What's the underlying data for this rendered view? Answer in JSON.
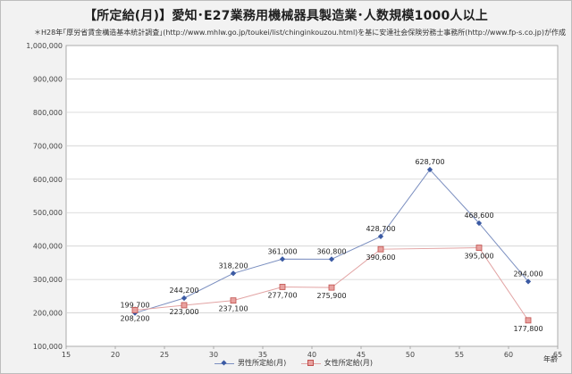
{
  "title": "【所定給(月)】愛知･E27業務用機械器具製造業･人数規模1000人以上",
  "subtitle": "＊H28年｢厚労省賃金構造基本統計調査｣(http://www.mhlw.go.jp/toukei/list/chinginkouzou.html)を基に安達社会保険労務士事務所(http://www.fp-s.co.jp)が作成",
  "colors": {
    "male_line": "#7b8fc0",
    "male_marker": "#3b5aa3",
    "female_line": "#e2a3a3",
    "female_marker": "#c0504d",
    "grid": "#d0d0d0",
    "plot_bg": "#ffffff"
  },
  "chart_data": {
    "type": "line",
    "xlabel": "年齢",
    "ylabel": "",
    "xlim": [
      15,
      65
    ],
    "ylim": [
      100000,
      1000000
    ],
    "x_ticks": [
      "15",
      "20",
      "25",
      "30",
      "35",
      "40",
      "45",
      "50",
      "55",
      "60",
      "65"
    ],
    "y_ticks": [
      "100,000",
      "200,000",
      "300,000",
      "400,000",
      "500,000",
      "600,000",
      "700,000",
      "800,000",
      "900,000",
      "1,000,000"
    ],
    "grid": true,
    "legend_position": "bottom",
    "series": [
      {
        "name": "男性所定給(月)",
        "marker": "diamond",
        "x": [
          22,
          27,
          32,
          37,
          42,
          47,
          52,
          57,
          62
        ],
        "values": [
          199700,
          244200,
          318200,
          361000,
          360800,
          428700,
          628700,
          468600,
          294000
        ],
        "labels": [
          "199,700",
          "244,200",
          "318,200",
          "361,000",
          "360,800",
          "428,700",
          "628,700",
          "468,600",
          "294,000"
        ]
      },
      {
        "name": "女性所定給(月)",
        "marker": "square",
        "x": [
          22,
          27,
          32,
          37,
          42,
          47,
          57,
          62
        ],
        "values": [
          208200,
          223000,
          237100,
          277700,
          275900,
          390600,
          395000,
          177800
        ],
        "labels": [
          "208,200",
          "223,000",
          "237,100",
          "277,700",
          "275,900",
          "390,600",
          "395,000",
          "177,800"
        ]
      }
    ]
  }
}
